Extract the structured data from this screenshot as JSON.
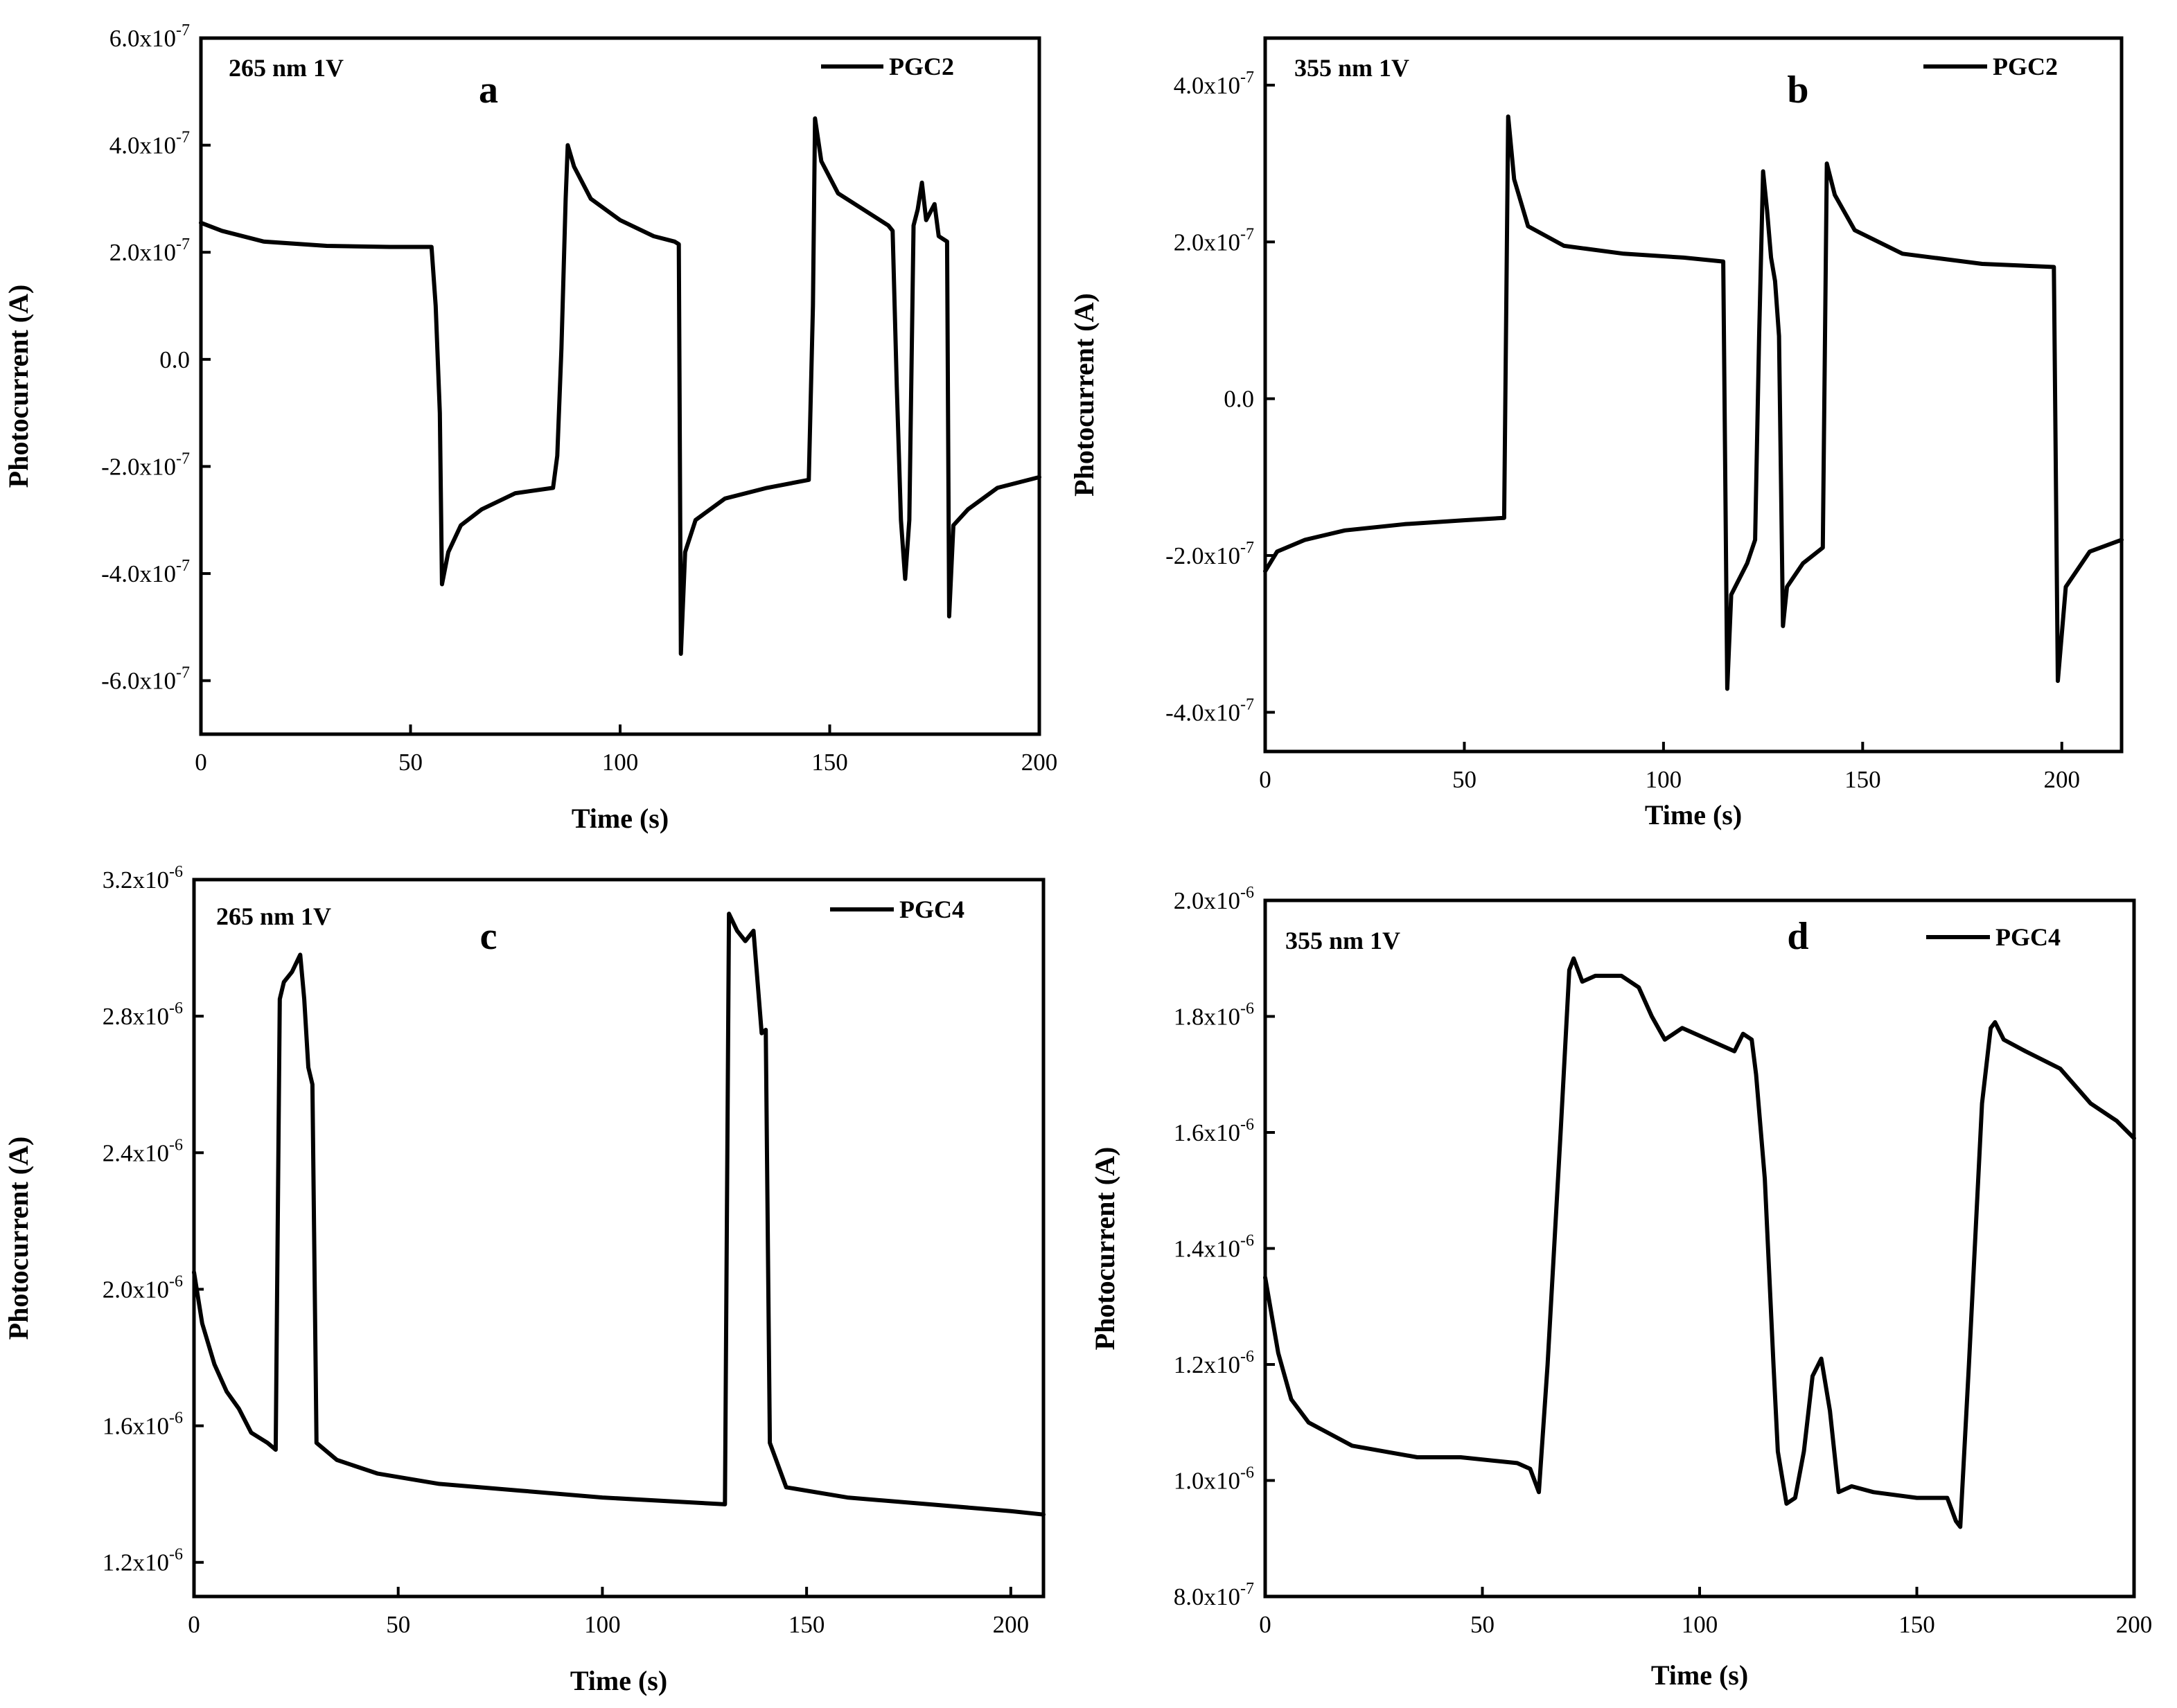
{
  "chart_data": [
    {
      "type": "line",
      "panel_label": "a",
      "annotation": "265 nm 1V",
      "legend": [
        "PGC2"
      ],
      "legend_position": "top-right",
      "xlabel": "Time (s)",
      "ylabel": "Photocurrent (A)",
      "xlim": [
        0,
        200
      ],
      "ylim": [
        -7e-07,
        6e-07
      ],
      "x_ticks": [
        0,
        50,
        100,
        150,
        200
      ],
      "x_tick_labels": [
        "0",
        "50",
        "100",
        "150",
        "200"
      ],
      "y_ticks": [
        -6e-07,
        -4e-07,
        -2e-07,
        0,
        2e-07,
        4e-07,
        6e-07
      ],
      "y_tick_labels": [
        {
          "m": "-6.0x10",
          "e": "-7"
        },
        {
          "m": "-4.0x10",
          "e": "-7"
        },
        {
          "m": "-2.0x10",
          "e": "-7"
        },
        {
          "m": "0.0",
          "e": ""
        },
        {
          "m": "2.0x10",
          "e": "-7"
        },
        {
          "m": "4.0x10",
          "e": "-7"
        },
        {
          "m": "6.0x10",
          "e": "-7"
        }
      ],
      "series": [
        {
          "name": "PGC2",
          "points": [
            [
              0,
              2.55e-07
            ],
            [
              5,
              2.4e-07
            ],
            [
              15,
              2.2e-07
            ],
            [
              30,
              2.12e-07
            ],
            [
              45,
              2.1e-07
            ],
            [
              55,
              2.1e-07
            ],
            [
              56,
              1e-07
            ],
            [
              57,
              -1e-07
            ],
            [
              57.5,
              -4.2e-07
            ],
            [
              59,
              -3.6e-07
            ],
            [
              62,
              -3.1e-07
            ],
            [
              67,
              -2.8e-07
            ],
            [
              75,
              -2.5e-07
            ],
            [
              84,
              -2.4e-07
            ],
            [
              85,
              -1.8e-07
            ],
            [
              86,
              2e-08
            ],
            [
              87,
              3e-07
            ],
            [
              87.5,
              4e-07
            ],
            [
              89,
              3.6e-07
            ],
            [
              93,
              3e-07
            ],
            [
              100,
              2.6e-07
            ],
            [
              108,
              2.3e-07
            ],
            [
              113,
              2.2e-07
            ],
            [
              114,
              2.15e-07
            ],
            [
              114.5,
              -5.5e-07
            ],
            [
              115.5,
              -3.6e-07
            ],
            [
              118,
              -3e-07
            ],
            [
              125,
              -2.6e-07
            ],
            [
              135,
              -2.4e-07
            ],
            [
              145,
              -2.25e-07
            ],
            [
              146,
              1e-07
            ],
            [
              146.5,
              4.5e-07
            ],
            [
              148,
              3.7e-07
            ],
            [
              152,
              3.1e-07
            ],
            [
              158,
              2.8e-07
            ],
            [
              164,
              2.5e-07
            ],
            [
              165,
              2.4e-07
            ],
            [
              166,
              -5e-08
            ],
            [
              167,
              -3e-07
            ],
            [
              168,
              -4.1e-07
            ],
            [
              169,
              -3e-07
            ],
            [
              170,
              2.5e-07
            ],
            [
              171,
              2.8e-07
            ],
            [
              172,
              3.3e-07
            ],
            [
              173,
              2.6e-07
            ],
            [
              175,
              2.9e-07
            ],
            [
              176,
              2.3e-07
            ],
            [
              178,
              2.2e-07
            ],
            [
              178.5,
              -4.8e-07
            ],
            [
              179.5,
              -3.1e-07
            ],
            [
              183,
              -2.8e-07
            ],
            [
              190,
              -2.4e-07
            ],
            [
              200,
              -2.2e-07
            ]
          ]
        }
      ]
    },
    {
      "type": "line",
      "panel_label": "b",
      "annotation": "355 nm 1V",
      "legend": [
        "PGC2"
      ],
      "legend_position": "top-right",
      "xlabel": "Time (s)",
      "ylabel": "Photocurrent (A)",
      "xlim": [
        0,
        215
      ],
      "ylim": [
        -4.5e-07,
        4.6e-07
      ],
      "x_ticks": [
        0,
        50,
        100,
        150,
        200
      ],
      "x_tick_labels": [
        "0",
        "50",
        "100",
        "150",
        "200"
      ],
      "y_ticks": [
        -4e-07,
        -2e-07,
        0,
        2e-07,
        4e-07
      ],
      "y_tick_labels": [
        {
          "m": "-4.0x10",
          "e": "-7"
        },
        {
          "m": "-2.0x10",
          "e": "-7"
        },
        {
          "m": "0.0",
          "e": ""
        },
        {
          "m": "2.0x10",
          "e": "-7"
        },
        {
          "m": "4.0x10",
          "e": "-7"
        }
      ],
      "series": [
        {
          "name": "PGC2",
          "points": [
            [
              0,
              -2.2e-07
            ],
            [
              3,
              -1.95e-07
            ],
            [
              10,
              -1.8e-07
            ],
            [
              20,
              -1.68e-07
            ],
            [
              35,
              -1.6e-07
            ],
            [
              50,
              -1.55e-07
            ],
            [
              60,
              -1.52e-07
            ],
            [
              61,
              3.6e-07
            ],
            [
              62.5,
              2.8e-07
            ],
            [
              66,
              2.2e-07
            ],
            [
              75,
              1.95e-07
            ],
            [
              90,
              1.85e-07
            ],
            [
              105,
              1.8e-07
            ],
            [
              115,
              1.75e-07
            ],
            [
              116,
              -3.7e-07
            ],
            [
              117,
              -2.5e-07
            ],
            [
              121,
              -2.1e-07
            ],
            [
              123,
              -1.8e-07
            ],
            [
              124,
              8e-08
            ],
            [
              125,
              2.9e-07
            ],
            [
              126,
              2.4e-07
            ],
            [
              127,
              1.8e-07
            ],
            [
              128,
              1.5e-07
            ],
            [
              129,
              8e-08
            ],
            [
              130,
              -2.9e-07
            ],
            [
              131,
              -2.4e-07
            ],
            [
              135,
              -2.1e-07
            ],
            [
              140,
              -1.9e-07
            ],
            [
              141,
              3e-07
            ],
            [
              143,
              2.6e-07
            ],
            [
              148,
              2.15e-07
            ],
            [
              160,
              1.85e-07
            ],
            [
              180,
              1.72e-07
            ],
            [
              198,
              1.68e-07
            ],
            [
              199,
              -3.6e-07
            ],
            [
              201,
              -2.4e-07
            ],
            [
              207,
              -1.95e-07
            ],
            [
              215,
              -1.8e-07
            ]
          ]
        }
      ]
    },
    {
      "type": "line",
      "panel_label": "c",
      "annotation": "265 nm 1V",
      "legend": [
        "PGC4"
      ],
      "legend_position": "top-right",
      "xlabel": "Time (s)",
      "ylabel": "Photocurrent (A)",
      "xlim": [
        0,
        208
      ],
      "ylim": [
        1.1e-06,
        3.2e-06
      ],
      "x_ticks": [
        0,
        50,
        100,
        150,
        200
      ],
      "x_tick_labels": [
        "0",
        "50",
        "100",
        "150",
        "200"
      ],
      "y_ticks": [
        1.2e-06,
        1.6e-06,
        2e-06,
        2.4e-06,
        2.8e-06,
        3.2e-06
      ],
      "y_tick_labels": [
        {
          "m": "1.2x10",
          "e": "-6"
        },
        {
          "m": "1.6x10",
          "e": "-6"
        },
        {
          "m": "2.0x10",
          "e": "-6"
        },
        {
          "m": "2.4x10",
          "e": "-6"
        },
        {
          "m": "2.8x10",
          "e": "-6"
        },
        {
          "m": "3.2x10",
          "e": "-6"
        }
      ],
      "series": [
        {
          "name": "PGC4",
          "points": [
            [
              0,
              2.05e-06
            ],
            [
              2,
              1.9e-06
            ],
            [
              5,
              1.78e-06
            ],
            [
              8,
              1.7e-06
            ],
            [
              11,
              1.65e-06
            ],
            [
              14,
              1.58e-06
            ],
            [
              18,
              1.55e-06
            ],
            [
              20,
              1.53e-06
            ],
            [
              21,
              2.85e-06
            ],
            [
              22,
              2.9e-06
            ],
            [
              24,
              2.93e-06
            ],
            [
              26,
              2.98e-06
            ],
            [
              27,
              2.85e-06
            ],
            [
              28,
              2.65e-06
            ],
            [
              29,
              2.6e-06
            ],
            [
              30,
              1.55e-06
            ],
            [
              35,
              1.5e-06
            ],
            [
              45,
              1.46e-06
            ],
            [
              60,
              1.43e-06
            ],
            [
              80,
              1.41e-06
            ],
            [
              100,
              1.39e-06
            ],
            [
              115,
              1.38e-06
            ],
            [
              130,
              1.37e-06
            ],
            [
              131,
              3.1e-06
            ],
            [
              133,
              3.05e-06
            ],
            [
              135,
              3.02e-06
            ],
            [
              137,
              3.05e-06
            ],
            [
              138,
              2.9e-06
            ],
            [
              139,
              2.75e-06
            ],
            [
              140,
              2.76e-06
            ],
            [
              141,
              1.55e-06
            ],
            [
              145,
              1.42e-06
            ],
            [
              160,
              1.39e-06
            ],
            [
              180,
              1.37e-06
            ],
            [
              200,
              1.35e-06
            ],
            [
              208,
              1.34e-06
            ]
          ]
        }
      ]
    },
    {
      "type": "line",
      "panel_label": "d",
      "annotation": "355  nm 1V",
      "legend": [
        "PGC4"
      ],
      "legend_position": "top-right",
      "xlabel": "Time (s)",
      "ylabel": "Photocurrent (A)",
      "xlim": [
        0,
        200
      ],
      "ylim": [
        8e-07,
        2e-06
      ],
      "x_ticks": [
        0,
        50,
        100,
        150,
        200
      ],
      "x_tick_labels": [
        "0",
        "50",
        "100",
        "150",
        "200"
      ],
      "y_ticks": [
        8e-07,
        1e-06,
        1.2e-06,
        1.4e-06,
        1.6e-06,
        1.8e-06,
        2e-06
      ],
      "y_tick_labels": [
        {
          "m": "8.0x10",
          "e": "-7"
        },
        {
          "m": "1.0x10",
          "e": "-6"
        },
        {
          "m": "1.2x10",
          "e": "-6"
        },
        {
          "m": "1.4x10",
          "e": "-6"
        },
        {
          "m": "1.6x10",
          "e": "-6"
        },
        {
          "m": "1.8x10",
          "e": "-6"
        },
        {
          "m": "2.0x10",
          "e": "-6"
        }
      ],
      "series": [
        {
          "name": "PGC4",
          "points": [
            [
              0,
              1.35e-06
            ],
            [
              3,
              1.22e-06
            ],
            [
              6,
              1.14e-06
            ],
            [
              10,
              1.1e-06
            ],
            [
              20,
              1.06e-06
            ],
            [
              35,
              1.04e-06
            ],
            [
              45,
              1.04e-06
            ],
            [
              58,
              1.03e-06
            ],
            [
              61,
              1.02e-06
            ],
            [
              63,
              9.8e-07
            ],
            [
              65,
              1.2e-06
            ],
            [
              68,
              1.6e-06
            ],
            [
              70,
              1.88e-06
            ],
            [
              71,
              1.9e-06
            ],
            [
              73,
              1.86e-06
            ],
            [
              76,
              1.87e-06
            ],
            [
              82,
              1.87e-06
            ],
            [
              86,
              1.85e-06
            ],
            [
              89,
              1.8e-06
            ],
            [
              92,
              1.76e-06
            ],
            [
              96,
              1.78e-06
            ],
            [
              102,
              1.76e-06
            ],
            [
              108,
              1.74e-06
            ],
            [
              110,
              1.77e-06
            ],
            [
              112,
              1.76e-06
            ],
            [
              113,
              1.7e-06
            ],
            [
              115,
              1.52e-06
            ],
            [
              117,
              1.2e-06
            ],
            [
              118,
              1.05e-06
            ],
            [
              120,
              9.6e-07
            ],
            [
              122,
              9.7e-07
            ],
            [
              124,
              1.05e-06
            ],
            [
              126,
              1.18e-06
            ],
            [
              128,
              1.21e-06
            ],
            [
              130,
              1.12e-06
            ],
            [
              132,
              9.8e-07
            ],
            [
              135,
              9.9e-07
            ],
            [
              140,
              9.8e-07
            ],
            [
              150,
              9.7e-07
            ],
            [
              157,
              9.7e-07
            ],
            [
              159,
              9.3e-07
            ],
            [
              160,
              9.2e-07
            ],
            [
              162,
              1.2e-06
            ],
            [
              165,
              1.65e-06
            ],
            [
              167,
              1.78e-06
            ],
            [
              168,
              1.79e-06
            ],
            [
              170,
              1.76e-06
            ],
            [
              175,
              1.74e-06
            ],
            [
              183,
              1.71e-06
            ],
            [
              190,
              1.65e-06
            ],
            [
              196,
              1.62e-06
            ],
            [
              200,
              1.59e-06
            ]
          ]
        }
      ]
    }
  ]
}
